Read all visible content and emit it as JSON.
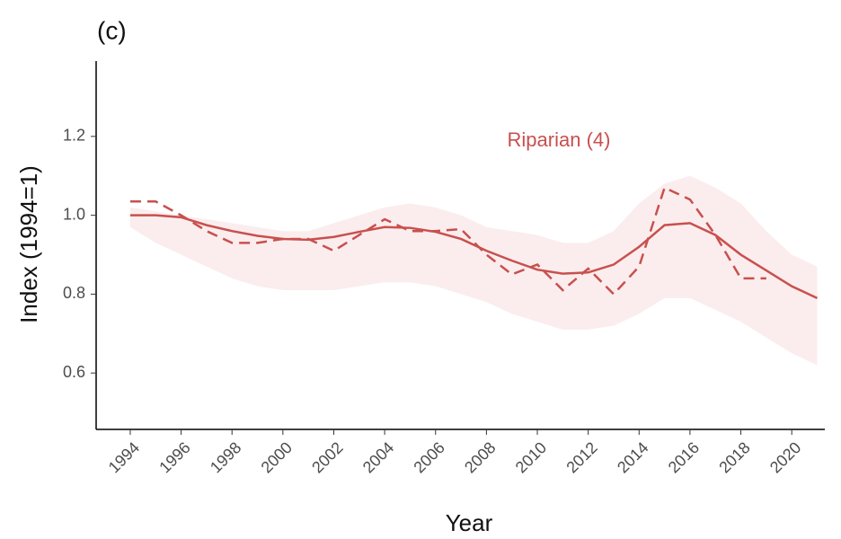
{
  "chart_data": {
    "type": "line",
    "title": "(c)",
    "x_label": "Year",
    "y_label": "Index (1994=1)",
    "annotation": "Riparian (4)",
    "color": "#c8504f",
    "band_color": "#fbeded",
    "x": [
      1994,
      1995,
      1996,
      1997,
      1998,
      1999,
      2000,
      2001,
      2002,
      2003,
      2004,
      2005,
      2006,
      2007,
      2008,
      2009,
      2010,
      2011,
      2012,
      2013,
      2014,
      2015,
      2016,
      2017,
      2018,
      2019,
      2020,
      2021
    ],
    "series": [
      {
        "style": "solid",
        "values": [
          1.0,
          1.0,
          0.995,
          0.975,
          0.96,
          0.948,
          0.94,
          0.938,
          0.945,
          0.958,
          0.97,
          0.968,
          0.958,
          0.94,
          0.91,
          0.885,
          0.862,
          0.852,
          0.855,
          0.875,
          0.92,
          0.975,
          0.98,
          0.95,
          0.9,
          0.86,
          0.82,
          0.79
        ]
      },
      {
        "style": "dashed",
        "values": [
          1.035,
          1.035,
          1.0,
          0.96,
          0.93,
          0.93,
          0.94,
          0.94,
          0.91,
          0.95,
          0.99,
          0.96,
          0.96,
          0.965,
          0.9,
          0.85,
          0.875,
          0.81,
          0.865,
          0.8,
          0.87,
          1.07,
          1.04,
          0.95,
          0.84,
          0.84,
          null,
          null
        ]
      }
    ],
    "band": {
      "lower": [
        0.97,
        0.93,
        0.9,
        0.87,
        0.84,
        0.82,
        0.81,
        0.81,
        0.81,
        0.82,
        0.83,
        0.83,
        0.82,
        0.8,
        0.78,
        0.75,
        0.73,
        0.71,
        0.71,
        0.72,
        0.75,
        0.79,
        0.79,
        0.76,
        0.73,
        0.69,
        0.65,
        0.62
      ],
      "upper": [
        1.02,
        1.01,
        1.0,
        0.99,
        0.98,
        0.97,
        0.96,
        0.96,
        0.98,
        1.0,
        1.02,
        1.03,
        1.02,
        1.0,
        0.97,
        0.96,
        0.95,
        0.93,
        0.93,
        0.96,
        1.03,
        1.08,
        1.1,
        1.07,
        1.03,
        0.96,
        0.9,
        0.87
      ]
    },
    "xlim": [
      1992.66,
      2021.3
    ],
    "xticks": [
      1994,
      1996,
      1998,
      2000,
      2002,
      2004,
      2006,
      2008,
      2010,
      2012,
      2014,
      2016,
      2018,
      2020
    ],
    "ylim": [
      0.457,
      1.391
    ],
    "yticks": [
      0.6,
      0.8,
      {
        "value": 1,
        "label": "1.0"
      },
      1.2
    ]
  }
}
